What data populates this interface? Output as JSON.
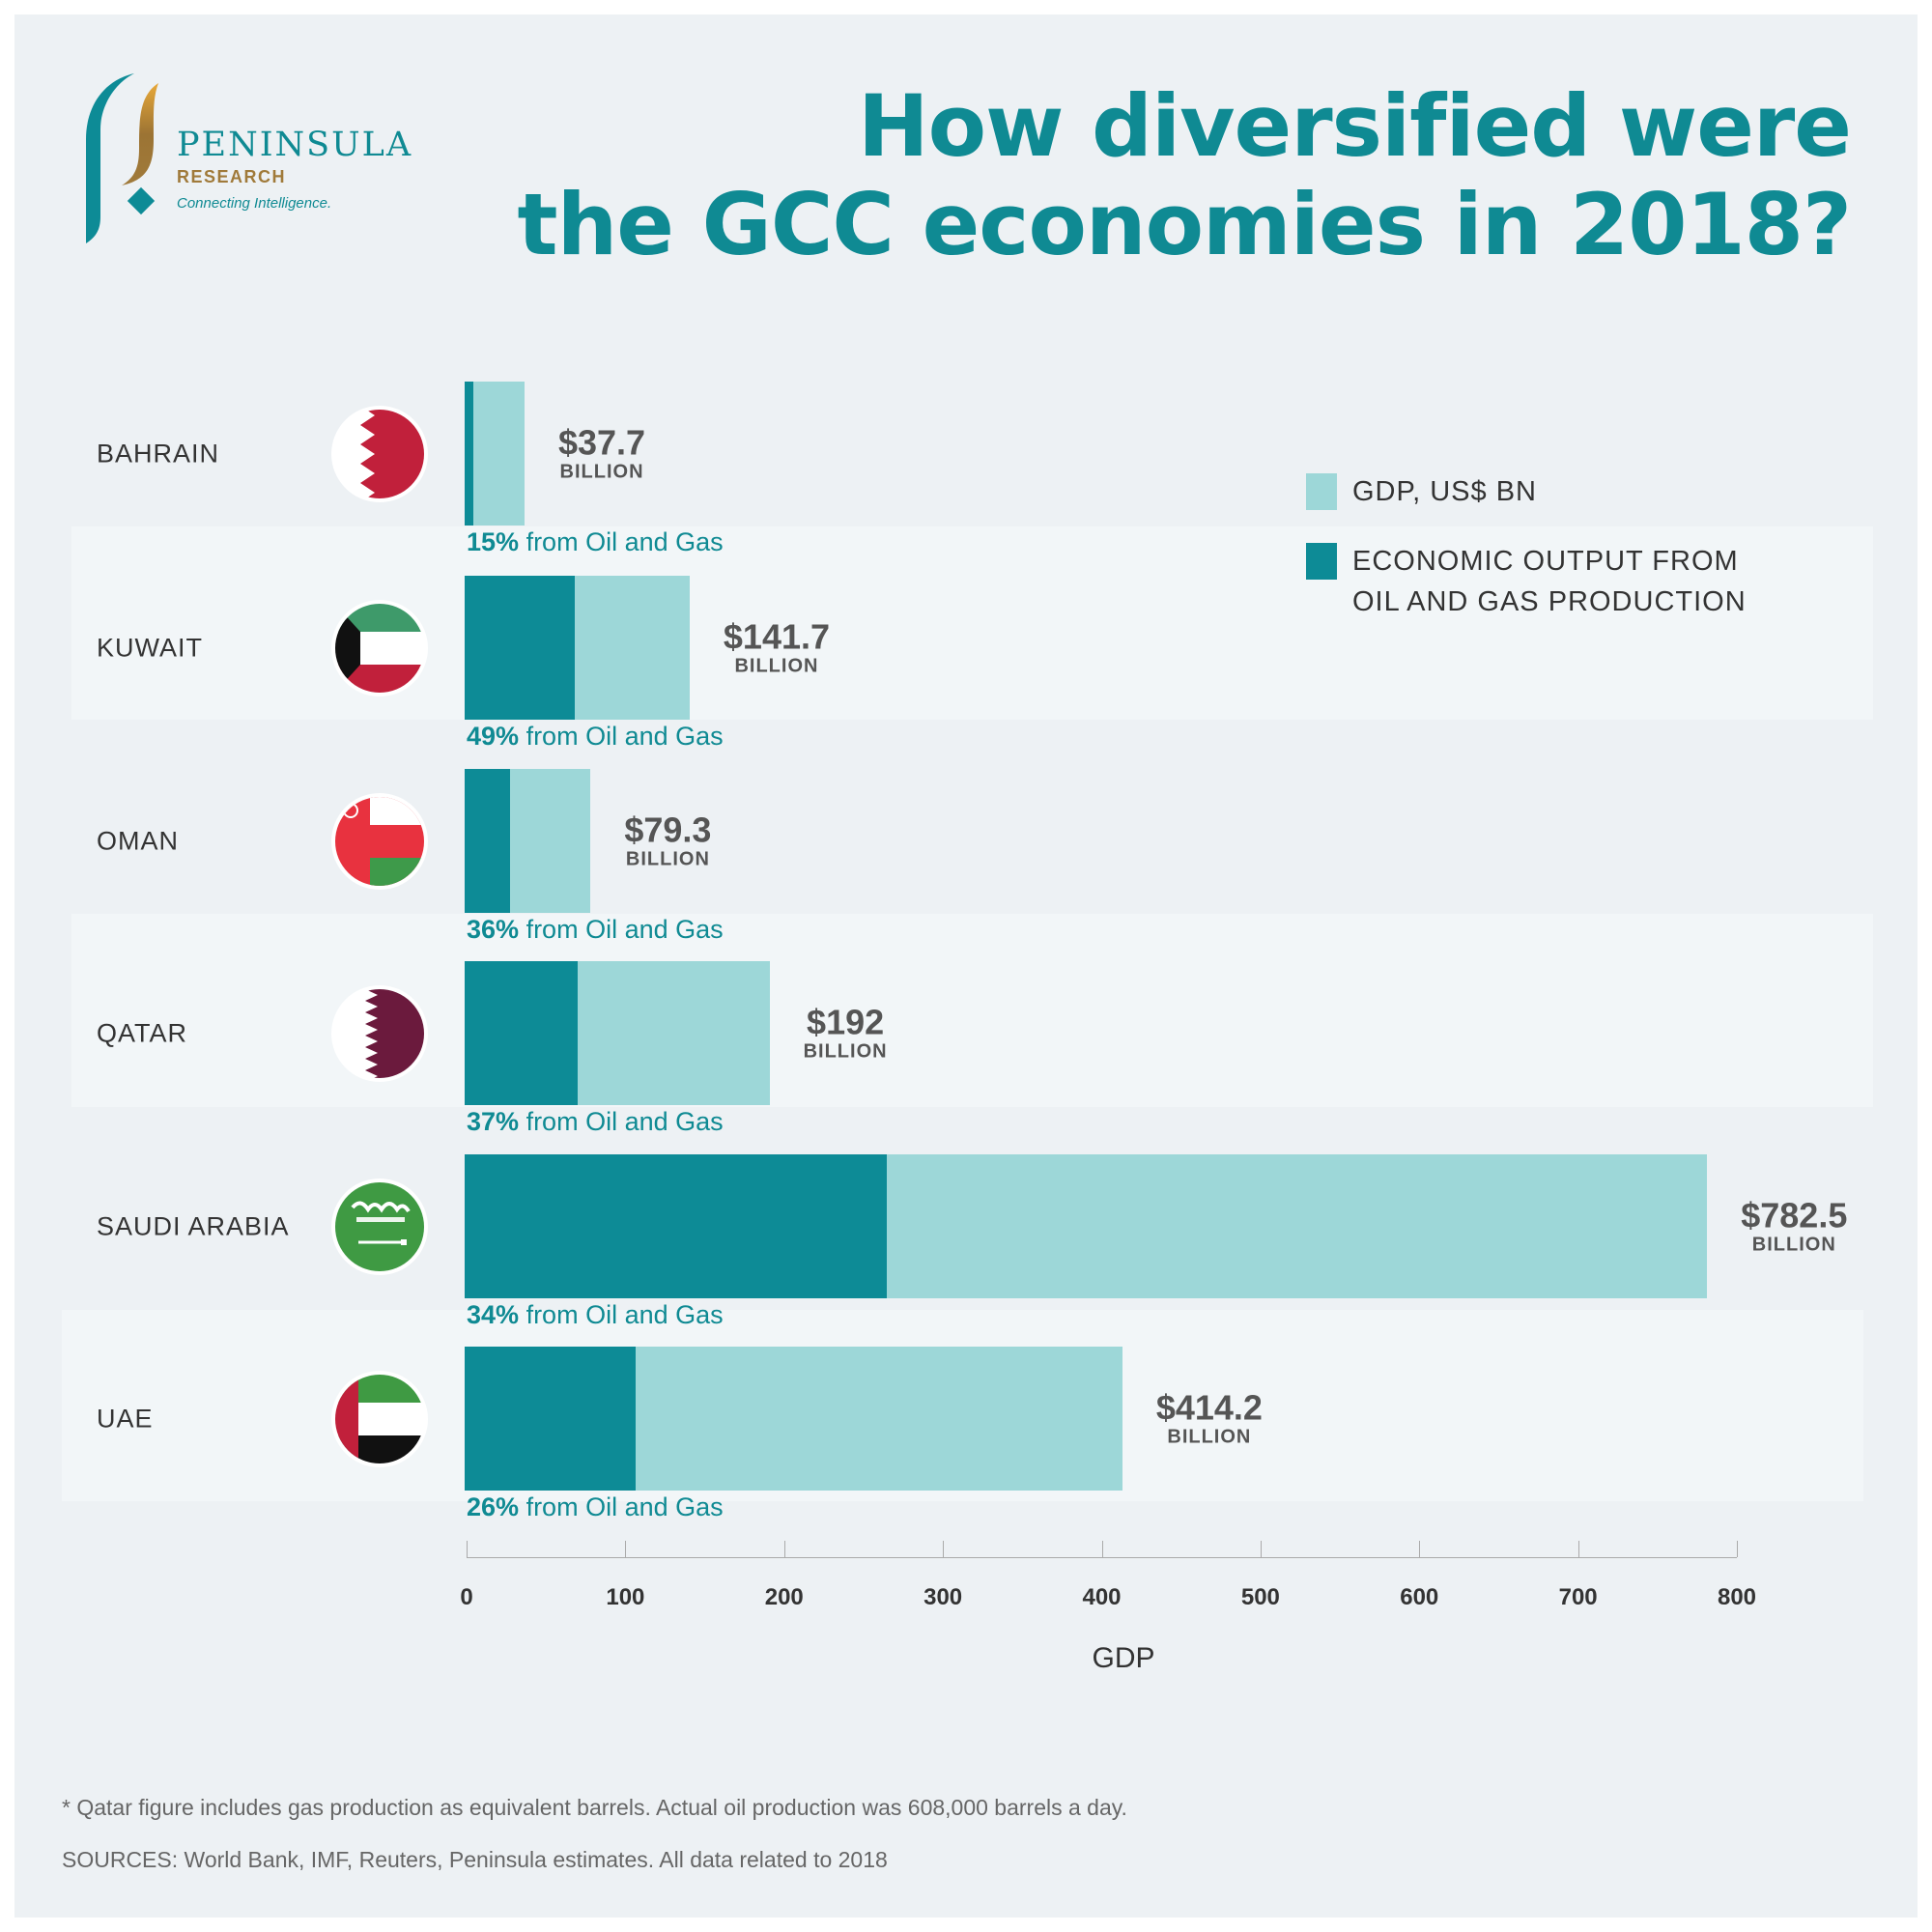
{
  "logo": {
    "name": "PENINSULA",
    "sub": "RESEARCH",
    "tagline": "Connecting Intelligence."
  },
  "title_lines": [
    "How diversified were",
    "the GCC economies in 2018?"
  ],
  "colors": {
    "gdp": "#9dd7d8",
    "oil": "#0d8b96",
    "accent": "#0f8a93",
    "gold": "#a07a3a"
  },
  "legend": {
    "gdp": "GDP, US$ BN",
    "oil_line1": "ECONOMIC OUTPUT FROM",
    "oil_line2": "OIL AND GAS PRODUCTION"
  },
  "chart_data": {
    "type": "bar",
    "orientation": "horizontal",
    "stacked_overlay": true,
    "categories": [
      "BAHRAIN",
      "KUWAIT",
      "OMAN",
      "QATAR",
      "SAUDI ARABIA",
      "UAE"
    ],
    "gdp": [
      37.7,
      141.7,
      79.3,
      192,
      782.5,
      414.2
    ],
    "oil_share_pct": [
      15,
      49,
      36,
      37,
      34,
      26
    ],
    "value_labels": [
      "$37.7",
      "$141.7",
      "$79.3",
      "$192",
      "$782.5",
      "$414.2"
    ],
    "value_unit": "BILLION",
    "pct_suffix": "from Oil and Gas",
    "pct_labels": [
      "15%",
      "49%",
      "36%",
      "37%",
      "34%",
      "26%"
    ],
    "xlabel": "GDP",
    "xlim": [
      0,
      800
    ],
    "xticks": [
      "0",
      "100",
      "200",
      "300",
      "400",
      "500",
      "600",
      "700",
      "800"
    ],
    "flags": [
      "bahrain-flag",
      "kuwait-flag",
      "oman-flag",
      "qatar-flag",
      "saudi-arabia-flag",
      "uae-flag"
    ]
  },
  "footnote": "* Qatar figure includes gas production as equivalent barrels. Actual oil production was 608,000 barrels a day.",
  "sources": "SOURCES: World Bank, IMF, Reuters, Peninsula estimates. All data related to 2018"
}
